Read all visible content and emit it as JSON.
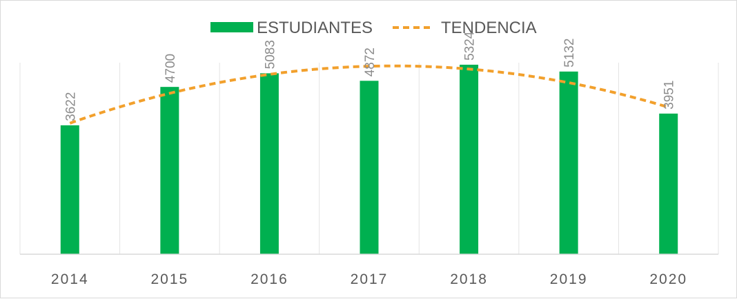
{
  "chart_data": {
    "type": "bar",
    "categories": [
      "2014",
      "2015",
      "2016",
      "2017",
      "2018",
      "2019",
      "2020"
    ],
    "series": [
      {
        "name": "ESTUDIANTES",
        "values": [
          3622,
          4700,
          5083,
          4872,
          5324,
          5132,
          3951
        ],
        "color": "#00b050"
      }
    ],
    "trendline": {
      "name": "TENDENCIA",
      "kind": "polynomial",
      "style": "dashed",
      "color": "#f2a02c"
    },
    "legend": {
      "position": "top",
      "entries": [
        "ESTUDIANTES",
        "TENDENCIA"
      ]
    },
    "data_labels": [
      "3622",
      "4700",
      "5083",
      "4872",
      "5324",
      "5132",
      "3951"
    ],
    "data_label_orientation": "vertical",
    "ylim": [
      0,
      6000
    ],
    "y_axis_visible": false,
    "grid": {
      "vertical_category_lines": true,
      "horizontal": false
    }
  }
}
